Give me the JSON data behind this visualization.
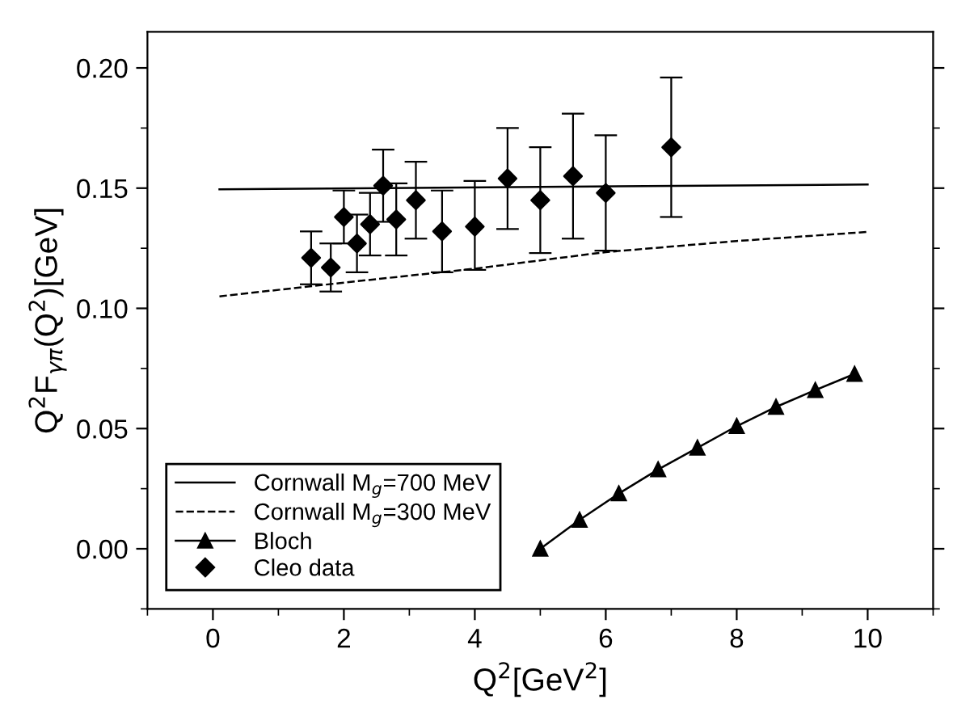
{
  "chart_data": {
    "type": "scatter",
    "xlabel": "Q$^{2}$[GeV$^{2}$]",
    "ylabel": "Q$^{2}$F$_{γπ}$(Q$^{2}$)[GeV]",
    "xlim": [
      -1,
      11
    ],
    "xticks": [
      0,
      2,
      4,
      6,
      8,
      10
    ],
    "ylim": [
      -0.025,
      0.215
    ],
    "yticks": [
      {
        "value": 0,
        "label": "0.00"
      },
      {
        "value": 0.05,
        "label": "0.05"
      },
      {
        "value": 0.1,
        "label": "0.10"
      },
      {
        "value": 0.15,
        "label": "0.15"
      },
      {
        "value": 0.2,
        "label": "0.20"
      }
    ],
    "grid": false,
    "legend": "bottom left",
    "series": [
      {
        "name": "Cornwall M$_{g}$=700 MeV",
        "type": "line",
        "line_style": "solid",
        "marker": "none",
        "color": "#000000",
        "x": [
          0.1,
          5,
          10
        ],
        "values": [
          0.1495,
          0.1505,
          0.1515
        ]
      },
      {
        "name": "Cornwall M$_{g}$=300 MeV",
        "type": "line",
        "line_style": "dashed",
        "marker": "none",
        "color": "#000000",
        "x": [
          0.1,
          2,
          4,
          6,
          8,
          10
        ],
        "values": [
          0.105,
          0.1107,
          0.1165,
          0.1234,
          0.128,
          0.1318
        ]
      },
      {
        "name": "Bloch",
        "type": "line",
        "line_style": "solid",
        "marker": "triangle",
        "color": "#000000",
        "x": [
          5.0,
          5.6,
          6.2,
          6.8,
          7.4,
          8.0,
          8.6,
          9.2,
          9.8
        ],
        "values": [
          0.0,
          0.012,
          0.023,
          0.033,
          0.042,
          0.051,
          0.059,
          0.066,
          0.0727
        ]
      },
      {
        "name": "Cleo data",
        "marker": "diamond",
        "color": "#000000",
        "x": [
          1.5,
          1.8,
          2.0,
          2.2,
          2.4,
          2.6,
          2.8,
          3.1,
          3.5,
          4.0,
          4.5,
          5.0,
          5.5,
          6.0,
          7.0
        ],
        "values": [
          0.121,
          0.117,
          0.138,
          0.127,
          0.135,
          0.151,
          0.137,
          0.145,
          0.132,
          0.134,
          0.154,
          0.145,
          0.155,
          0.148,
          0.167
        ],
        "errors": [
          [
            0.11,
            0.132
          ],
          [
            0.107,
            0.127
          ],
          [
            0.127,
            0.149
          ],
          [
            0.115,
            0.139
          ],
          [
            0.122,
            0.148
          ],
          [
            0.136,
            0.166
          ],
          [
            0.122,
            0.152
          ],
          [
            0.129,
            0.161
          ],
          [
            0.115,
            0.149
          ],
          [
            0.116,
            0.153
          ],
          [
            0.133,
            0.175
          ],
          [
            0.123,
            0.167
          ],
          [
            0.129,
            0.181
          ],
          [
            0.124,
            0.172
          ],
          [
            0.138,
            0.196
          ]
        ]
      }
    ]
  }
}
